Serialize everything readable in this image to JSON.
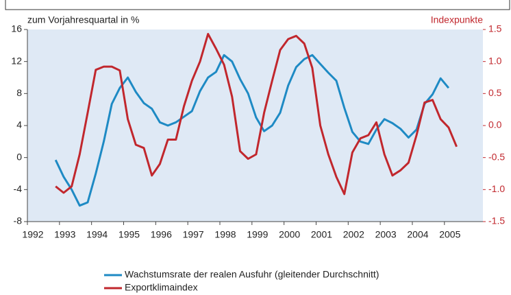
{
  "chart_data": {
    "type": "line",
    "y_label": "zum Vorjahresquartal in %",
    "y2_label": "Indexpunkte",
    "x": [
      1992.88,
      1993.13,
      1993.38,
      1993.63,
      1993.88,
      1994.13,
      1994.38,
      1994.63,
      1994.88,
      1995.13,
      1995.38,
      1995.63,
      1995.88,
      1996.13,
      1996.38,
      1996.63,
      1996.88,
      1997.13,
      1997.38,
      1997.63,
      1997.88,
      1998.13,
      1998.38,
      1998.63,
      1998.88,
      1999.13,
      1999.38,
      1999.63,
      1999.88,
      2000.13,
      2000.38,
      2000.63,
      2000.88,
      2001.13,
      2001.38,
      2001.63,
      2001.88,
      2002.13,
      2002.38,
      2002.63,
      2002.88,
      2003.13,
      2003.38,
      2003.63,
      2003.88,
      2004.13,
      2004.38,
      2004.63,
      2004.88,
      2005.13,
      2005.38
    ],
    "series": [
      {
        "name": "Wachstumsrate der realen Ausfuhr (gleitender Durchschnitt)",
        "color": "#1e8ac4",
        "values": [
          -0.3,
          -2.4,
          -4.0,
          -6.0,
          -5.6,
          -2.0,
          2.0,
          6.7,
          8.7,
          10.0,
          8.2,
          6.8,
          6.1,
          4.4,
          4.0,
          4.4,
          5.1,
          5.8,
          8.3,
          10.0,
          10.7,
          12.8,
          12.0,
          9.8,
          8.0,
          5.0,
          3.3,
          4.0,
          5.6,
          9.0,
          11.3,
          12.3,
          12.8,
          11.7,
          10.6,
          9.6,
          6.2,
          3.2,
          2.0,
          1.7,
          3.5,
          4.8,
          4.3,
          3.6,
          2.5,
          3.5,
          6.7,
          7.9,
          9.9,
          8.7,
          null
        ]
      },
      {
        "name": "Exportklimaindex",
        "color": "#c1272d",
        "axis": "y2",
        "values": [
          -0.95,
          -1.05,
          -0.95,
          -0.45,
          0.2,
          0.87,
          0.92,
          0.92,
          0.86,
          0.1,
          -0.3,
          -0.35,
          -0.78,
          -0.6,
          -0.22,
          -0.22,
          0.3,
          0.7,
          1.0,
          1.43,
          1.2,
          0.95,
          0.45,
          -0.4,
          -0.52,
          -0.45,
          0.2,
          0.7,
          1.18,
          1.35,
          1.4,
          1.28,
          0.9,
          0.0,
          -0.45,
          -0.8,
          -1.07,
          -0.42,
          -0.2,
          -0.15,
          0.05,
          -0.45,
          -0.78,
          -0.7,
          -0.58,
          -0.15,
          0.36,
          0.4,
          0.1,
          -0.03,
          -0.33
        ]
      }
    ],
    "xlim": [
      1992,
      2006.2
    ],
    "xticks": [
      1992,
      1993,
      1994,
      1995,
      1996,
      1997,
      1998,
      1999,
      2000,
      2001,
      2002,
      2003,
      2004,
      2005
    ],
    "ylim": [
      -8,
      16
    ],
    "yticks": [
      -8,
      -4,
      0,
      4,
      8,
      12,
      16
    ],
    "y2lim": [
      -1.5,
      1.5
    ],
    "y2ticks": [
      -1.5,
      {
        "value": -1,
        "label": "-1.0"
      },
      -0.5,
      {
        "value": 0,
        "label": "0.0"
      },
      0.5,
      {
        "value": 1,
        "label": "1.0"
      },
      1.5
    ],
    "grid": false
  }
}
